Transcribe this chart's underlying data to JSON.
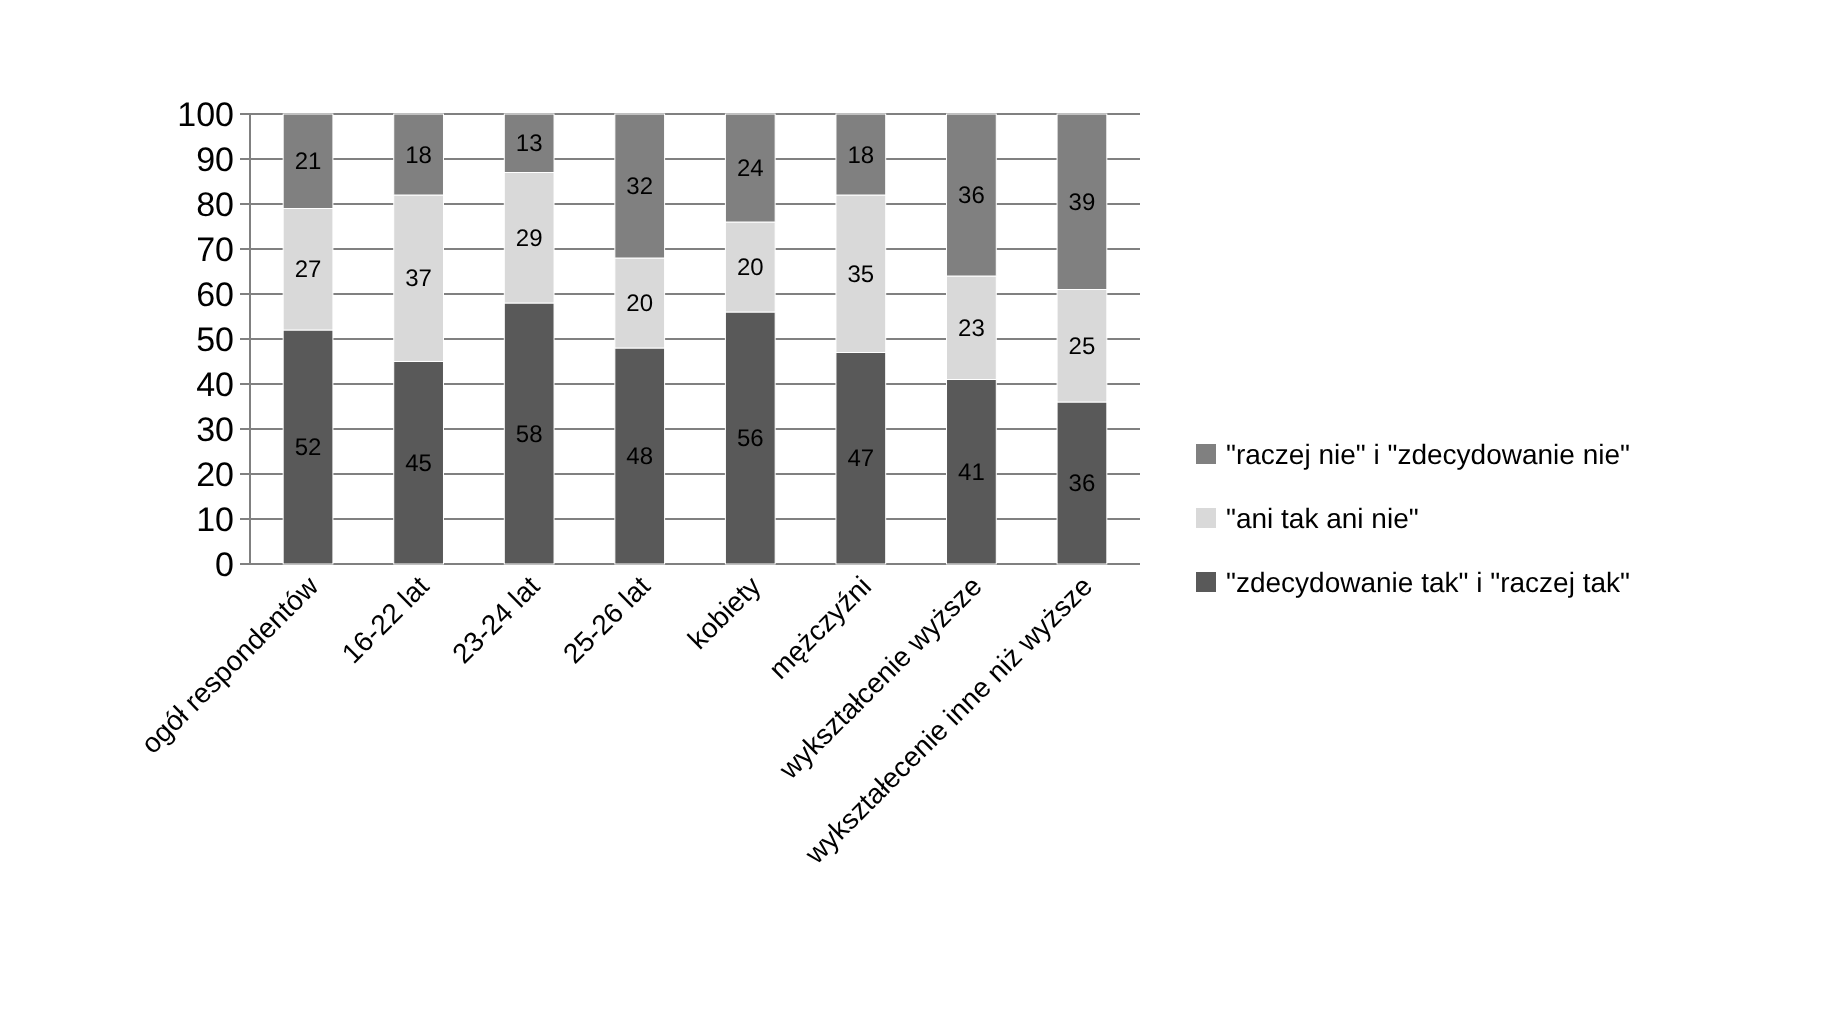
{
  "chart_data": {
    "type": "bar",
    "stacked": true,
    "categories": [
      "ogół respondentów",
      "16-22 lat",
      "23-24 lat",
      "25-26 lat",
      "kobiety",
      "mężczyźni",
      "wykształcenie wyższe",
      "wykształecenie inne niż wyższe"
    ],
    "series": [
      {
        "name": "\"zdecydowanie tak\" i \"raczej tak\"",
        "color": "#595959",
        "values": [
          52,
          45,
          58,
          48,
          56,
          47,
          41,
          36
        ]
      },
      {
        "name": "\"ani tak ani nie\"",
        "color": "#d9d9d9",
        "values": [
          27,
          37,
          29,
          20,
          20,
          35,
          23,
          25
        ]
      },
      {
        "name": "\"raczej nie\" i \"zdecydowanie nie\"",
        "color": "#808080",
        "values": [
          21,
          18,
          13,
          32,
          24,
          18,
          36,
          39
        ]
      }
    ],
    "ylim": [
      0,
      100
    ],
    "yticks": [
      0,
      10,
      20,
      30,
      40,
      50,
      60,
      70,
      80,
      90,
      100
    ],
    "grid": "y",
    "legend": "right",
    "data_labels": true
  }
}
